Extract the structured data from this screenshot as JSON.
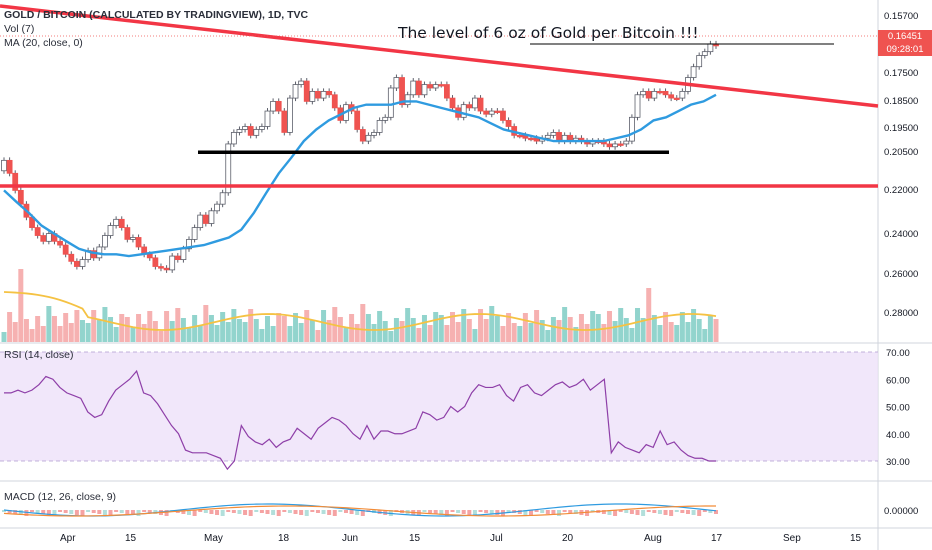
{
  "header": {
    "symbol_title": "GOLD / BITCOIN (CALCULATED BY TRADINGVIEW), 1D, TVC",
    "vol_label": "Vol (7)",
    "ma_label": "MA (20, close, 0)"
  },
  "annotation": "The level of 6 oz of Gold per Bitcoin !!!",
  "current_price": "0.16451",
  "countdown": "09:28:01",
  "rsi_label": "RSI (14, close)",
  "macd_label": "MACD (12, 26, close, 9)",
  "colors": {
    "up": "#ffffff",
    "down": "#ef5350",
    "vol_up": "#7fcdc4",
    "vol_down": "#f5a3a3",
    "ma": "#2f9be0",
    "vol_ma": "#f5c243",
    "trendline": "#f23645",
    "support": "#000000",
    "rsi": "#8e3fa8",
    "rsi_band": "#ede1f9",
    "macd": "#2f9be0",
    "signal": "#f28c38"
  },
  "chart_data": {
    "type": "candlestick",
    "main_panel": {
      "y_axis": {
        "scale": "reciprocal",
        "ticks": [
          "0.15700",
          "0.16451",
          "0.17500",
          "0.18500",
          "0.19500",
          "0.20500",
          "0.22000",
          "0.24000",
          "0.26000",
          "0.28000"
        ]
      },
      "x_axis": {
        "ticks": [
          "Apr",
          "15",
          "May",
          "18",
          "Jun",
          "15",
          "Jul",
          "20",
          "Aug",
          "17",
          "Sep",
          "15"
        ]
      },
      "close_prices": [
        0.2,
        0.205,
        0.212,
        0.218,
        0.224,
        0.229,
        0.233,
        0.236,
        0.232,
        0.236,
        0.238,
        0.243,
        0.247,
        0.25,
        0.246,
        0.241,
        0.245,
        0.239,
        0.233,
        0.228,
        0.225,
        0.229,
        0.235,
        0.234,
        0.239,
        0.243,
        0.245,
        0.25,
        0.251,
        0.252,
        0.244,
        0.246,
        0.24,
        0.235,
        0.229,
        0.223,
        0.227,
        0.221,
        0.218,
        0.213,
        0.194,
        0.19,
        0.189,
        0.188,
        0.191,
        0.189,
        0.188,
        0.183,
        0.18,
        0.183,
        0.19,
        0.179,
        0.175,
        0.174,
        0.18,
        0.177,
        0.179,
        0.177,
        0.178,
        0.182,
        0.186,
        0.181,
        0.183,
        0.189,
        0.193,
        0.191,
        0.19,
        0.186,
        0.185,
        0.176,
        0.173,
        0.181,
        0.178,
        0.174,
        0.178,
        0.175,
        0.176,
        0.175,
        0.175,
        0.179,
        0.182,
        0.185,
        0.181,
        0.182,
        0.179,
        0.183,
        0.184,
        0.183,
        0.183,
        0.186,
        0.188,
        0.191,
        0.191,
        0.192,
        0.192,
        0.193,
        0.192,
        0.191,
        0.19,
        0.193,
        0.191,
        0.193,
        0.192,
        0.193,
        0.194,
        0.193,
        0.193,
        0.194,
        0.195,
        0.194,
        0.194,
        0.193,
        0.185,
        0.178,
        0.177,
        0.179,
        0.177,
        0.177,
        0.178,
        0.179,
        0.179,
        0.177,
        0.173,
        0.17,
        0.167,
        0.166,
        0.164,
        0.16451
      ],
      "ma20": [
        0.212,
        0.217,
        0.222,
        0.228,
        0.232,
        0.236,
        0.24,
        0.242,
        0.243,
        0.243,
        0.244,
        0.243,
        0.242,
        0.241,
        0.24,
        0.239,
        0.238,
        0.236,
        0.234,
        0.23,
        0.222,
        0.213,
        0.205,
        0.199,
        0.193,
        0.189,
        0.186,
        0.184,
        0.182,
        0.181,
        0.181,
        0.181,
        0.18,
        0.18,
        0.181,
        0.182,
        0.183,
        0.184,
        0.185,
        0.187,
        0.189,
        0.19,
        0.191,
        0.192,
        0.193,
        0.193,
        0.193,
        0.193,
        0.193,
        0.192,
        0.191,
        0.189,
        0.186,
        0.185,
        0.183,
        0.181,
        0.18,
        0.178
      ],
      "support_line": 0.197,
      "resistance_line": 0.219,
      "target_line": 0.164,
      "trendline": [
        {
          "x": "Mar 27",
          "y": 0.155
        },
        {
          "x": "Aug 29",
          "y": 0.187
        }
      ]
    },
    "rsi_panel": {
      "band": [
        30,
        70
      ],
      "ticks": [
        "70.00",
        "60.00",
        "50.00",
        "40.00",
        "30.00"
      ],
      "values": [
        55,
        55,
        56,
        55,
        56,
        58,
        61,
        60,
        57,
        55,
        54,
        53,
        48,
        46,
        47,
        52,
        56,
        58,
        60,
        63,
        55,
        54,
        51,
        47,
        43,
        40,
        34,
        33,
        33,
        33,
        32,
        31,
        27,
        30,
        43,
        39,
        37,
        36,
        38,
        35,
        37,
        38,
        42,
        40,
        38,
        42,
        44,
        46,
        45,
        43,
        40,
        38,
        43,
        38,
        41,
        41,
        40,
        40,
        41,
        42,
        48,
        47,
        45,
        46,
        50,
        48,
        50,
        55,
        58,
        57,
        57,
        58,
        54,
        52,
        57,
        58,
        55,
        54,
        56,
        58,
        59,
        57,
        58,
        60,
        56,
        58,
        60,
        33,
        37,
        35,
        34,
        33,
        36,
        35,
        41,
        36,
        37,
        34,
        32,
        31,
        31,
        30,
        30
      ]
    },
    "macd_panel": {
      "ticks": [
        "0.00000"
      ]
    }
  }
}
